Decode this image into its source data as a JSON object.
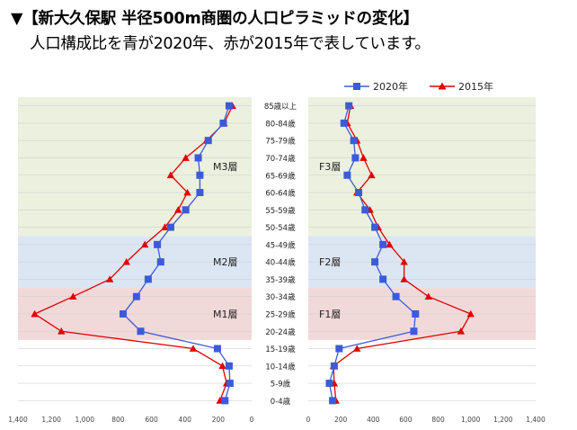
{
  "header": {
    "title": "▼【新大久保駅 半径500m商圏の人口ピラミッドの変化】",
    "subtitle": "人口構成比を青が2020年、赤が2015年で表しています。"
  },
  "chart_data": {
    "type": "line",
    "subtype": "population-pyramid",
    "categories": [
      "0-4歳",
      "5-9歳",
      "10-14歳",
      "15-19歳",
      "20-24歳",
      "25-29歳",
      "30-34歳",
      "35-39歳",
      "40-44歳",
      "45-49歳",
      "50-54歳",
      "55-59歳",
      "60-64歳",
      "65-69歳",
      "70-74歳",
      "75-79歳",
      "80-84歳",
      "85歳以上"
    ],
    "xlim": [
      0,
      1400
    ],
    "x_ticks": [
      "1,400",
      "1,200",
      "1,000",
      "800",
      "600",
      "400",
      "200",
      "0"
    ],
    "x_ticks_right": [
      "0",
      "200",
      "400",
      "600",
      "800",
      "1,000",
      "1,200",
      "1,400"
    ],
    "grid": true,
    "legend": {
      "position": "top-right",
      "entries": [
        "2020年",
        "2015年"
      ]
    },
    "colors": {
      "2020": "#3b5bdb",
      "2015": "#e00000"
    },
    "bands": [
      {
        "name": "young",
        "from": 4,
        "to": 6,
        "color": "#f2d9d9",
        "left_label": "M1層",
        "right_label": "F1層"
      },
      {
        "name": "middle",
        "from": 7,
        "to": 9,
        "color": "#dce6f2",
        "left_label": "M2層",
        "right_label": "F2層"
      },
      {
        "name": "senior",
        "from": 10,
        "to": 17,
        "color": "#ebf1de",
        "left_label": "M3層",
        "right_label": "F3層"
      }
    ],
    "male": {
      "series": [
        {
          "name": "2020年",
          "values": [
            160,
            130,
            135,
            205,
            665,
            770,
            690,
            620,
            545,
            565,
            485,
            395,
            310,
            310,
            320,
            260,
            170,
            135
          ]
        },
        {
          "name": "2015年",
          "values": [
            190,
            150,
            175,
            350,
            1140,
            1300,
            1070,
            850,
            750,
            640,
            520,
            440,
            385,
            485,
            395,
            270,
            165,
            115
          ]
        }
      ]
    },
    "female": {
      "series": [
        {
          "name": "2020年",
          "values": [
            150,
            130,
            160,
            190,
            650,
            660,
            540,
            460,
            410,
            460,
            410,
            350,
            310,
            240,
            290,
            280,
            220,
            250
          ]
        },
        {
          "name": "2015年",
          "values": [
            170,
            160,
            155,
            300,
            940,
            1000,
            740,
            590,
            590,
            500,
            430,
            380,
            300,
            390,
            340,
            300,
            240,
            260
          ]
        }
      ]
    }
  }
}
